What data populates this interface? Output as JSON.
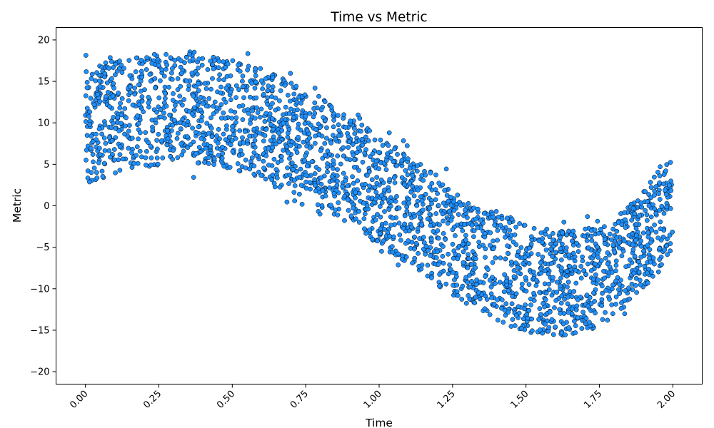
{
  "chart_data": {
    "type": "scatter",
    "title": "Time vs Metric",
    "xlabel": "Time",
    "ylabel": "Metric",
    "xlim": [
      -0.1,
      2.1
    ],
    "ylim": [
      -21.5,
      21.5
    ],
    "x_ticks": [
      0.0,
      0.25,
      0.5,
      0.75,
      1.0,
      1.25,
      1.5,
      1.75,
      2.0
    ],
    "x_tick_labels": [
      "0.00",
      "0.25",
      "0.50",
      "0.75",
      "1.00",
      "1.25",
      "1.50",
      "1.75",
      "2.00"
    ],
    "x_tick_rotation": 45,
    "y_ticks": [
      -20,
      -15,
      -10,
      -5,
      0,
      5,
      10,
      15,
      20
    ],
    "y_tick_labels": [
      "−20",
      "−15",
      "−10",
      "−5",
      "0",
      "5",
      "10",
      "15",
      "20"
    ],
    "grid": false,
    "legend": "none",
    "marker_color": "#1e90ff",
    "marker_edge_color": "#000000",
    "series": [
      {
        "x": [
          0.0,
          0.05,
          0.1,
          0.15,
          0.2,
          0.25,
          0.3,
          0.35,
          0.4,
          0.45,
          0.5,
          0.55,
          0.6,
          0.65,
          0.7,
          0.75,
          0.8,
          0.85,
          0.9,
          0.95,
          1.0,
          1.05,
          1.1,
          1.15,
          1.2,
          1.25,
          1.3,
          1.35,
          1.4,
          1.45,
          1.5,
          1.55,
          1.6,
          1.65,
          1.7,
          1.75,
          1.8,
          1.85,
          1.9,
          1.95,
          2.0
        ],
        "y": [
          9.5,
          10.1,
          10.6,
          11.1,
          11.4,
          11.6,
          11.7,
          11.7,
          11.6,
          11.4,
          11.0,
          10.5,
          9.9,
          9.2,
          8.4,
          7.5,
          6.5,
          5.4,
          4.3,
          3.1,
          1.9,
          0.6,
          -0.6,
          -1.8,
          -3.0,
          -4.2,
          -5.3,
          -6.3,
          -7.2,
          -8.0,
          -8.6,
          -9.1,
          -9.3,
          -9.3,
          -9.0,
          -8.4,
          -7.4,
          -6.0,
          -4.2,
          -1.9,
          0.9
        ],
        "spread": [
          7.0,
          7.0,
          6.9,
          6.8,
          6.8,
          6.7,
          6.6,
          6.6,
          6.6,
          6.6,
          6.6,
          6.6,
          6.6,
          6.6,
          6.6,
          6.6,
          6.6,
          6.6,
          6.6,
          6.6,
          6.6,
          6.6,
          6.6,
          6.6,
          6.6,
          6.6,
          6.6,
          6.6,
          6.6,
          6.6,
          6.6,
          6.5,
          6.4,
          6.3,
          6.2,
          6.1,
          6.0,
          6.0,
          6.0,
          6.2,
          6.5
        ]
      }
    ]
  }
}
